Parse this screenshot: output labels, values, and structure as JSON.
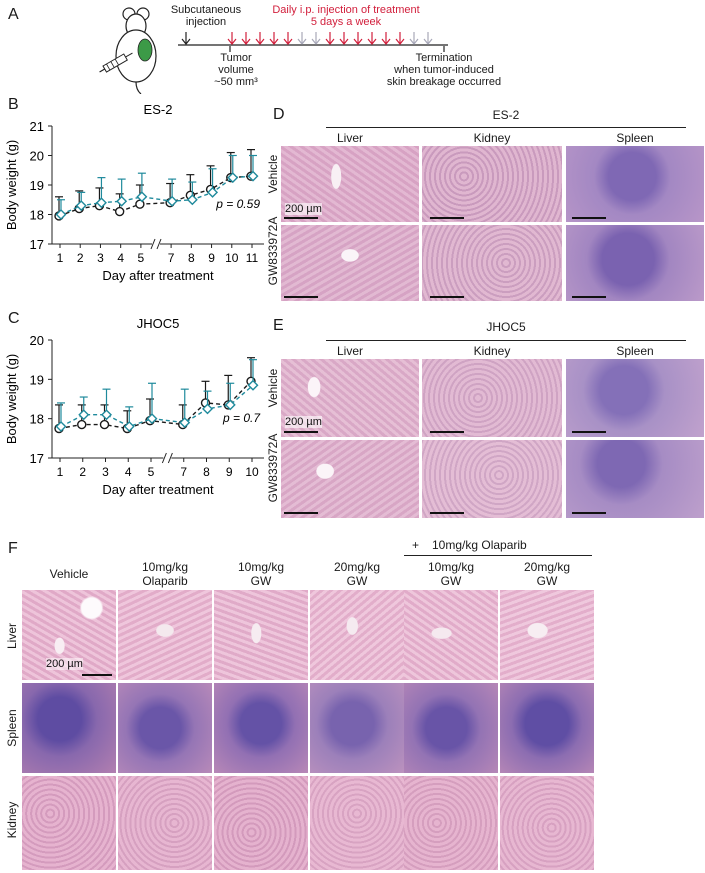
{
  "panels": {
    "A": "A",
    "B": "B",
    "C": "C",
    "D": "D",
    "E": "E",
    "F": "F"
  },
  "panelA": {
    "injection": "Subcutaneous\ninjection",
    "daily": "Daily i.p. injection of treatment",
    "daily2": "5 days a week",
    "tumor": "Tumor volume\n~50 mm³",
    "termination": "Termination\nwhen tumor-induced\nskin breakage occurred"
  },
  "chart_data": [
    {
      "type": "line",
      "title": "ES-2",
      "xlabel": "Day after treatment",
      "ylabel": "Body weight (g)",
      "categories": [
        "1",
        "2",
        "3",
        "4",
        "5",
        "7",
        "8",
        "9",
        "10",
        "11"
      ],
      "ylim": [
        17,
        21
      ],
      "yticks": [
        17,
        18,
        19,
        20,
        21
      ],
      "annotation": "p = 0.59",
      "series": [
        {
          "name": "Vehicle",
          "values": [
            17.95,
            18.2,
            18.3,
            18.1,
            18.35,
            18.4,
            18.65,
            18.85,
            19.25,
            19.3
          ],
          "err": [
            0.65,
            0.6,
            0.6,
            0.6,
            0.65,
            0.65,
            0.7,
            0.8,
            0.85,
            0.9
          ],
          "color": "#1a1a1a"
        },
        {
          "name": "GW833972A",
          "values": [
            18.0,
            18.3,
            18.4,
            18.45,
            18.6,
            18.45,
            18.5,
            18.75,
            19.25,
            19.3
          ],
          "err": [
            0.5,
            0.45,
            0.85,
            0.75,
            0.8,
            0.75,
            0.6,
            0.8,
            0.75,
            0.7
          ],
          "color": "#1f8a9c"
        }
      ],
      "legend": [
        "Vehicle",
        "GW833972A"
      ]
    },
    {
      "type": "line",
      "title": "JHOC5",
      "xlabel": "Day after treatment",
      "ylabel": "Body weight (g)",
      "categories": [
        "1",
        "2",
        "3",
        "4",
        "5",
        "7",
        "8",
        "9",
        "10"
      ],
      "ylim": [
        17,
        20
      ],
      "yticks": [
        17,
        18,
        19,
        20
      ],
      "annotation": "p = 0.7",
      "series": [
        {
          "name": "Vehicle",
          "values": [
            17.75,
            17.85,
            17.85,
            17.75,
            17.95,
            17.85,
            18.4,
            18.35,
            18.95
          ],
          "err": [
            0.6,
            0.5,
            0.5,
            0.45,
            0.55,
            0.5,
            0.55,
            0.75,
            0.6
          ],
          "color": "#1a1a1a"
        },
        {
          "name": "GW833972A",
          "values": [
            17.8,
            18.1,
            18.1,
            17.8,
            18.0,
            17.9,
            18.25,
            18.35,
            18.85
          ],
          "err": [
            0.6,
            0.45,
            0.65,
            0.5,
            0.9,
            0.85,
            0.45,
            0.55,
            0.65
          ],
          "color": "#1f8a9c"
        }
      ],
      "legend": [
        "Vehicle",
        "GW833972A"
      ]
    }
  ],
  "panelD": {
    "title": "ES-2",
    "cols": [
      "Liver",
      "Kidney",
      "Spleen"
    ],
    "rows": [
      "Vehicle",
      "GW833972A"
    ],
    "scale": "200 µm"
  },
  "panelE": {
    "title": "JHOC5",
    "cols": [
      "Liver",
      "Kidney",
      "Spleen"
    ],
    "rows": [
      "Vehicle",
      "GW833972A"
    ],
    "scale": "200 µm"
  },
  "panelF": {
    "plus": "+",
    "olaparib": "10mg/kg Olaparib",
    "cols": [
      "Vehicle",
      "10mg/kg\nOlaparib",
      "10mg/kg\nGW",
      "20mg/kg\nGW",
      "10mg/kg\nGW",
      "20mg/kg\nGW"
    ],
    "rows": [
      "Liver",
      "Spleen",
      "Kidney"
    ],
    "scale": "200 µm"
  },
  "colors": {
    "liver": "#d9a6c6",
    "kidney": "#dcb0cf",
    "spleen": "#9b7fc0",
    "red": "#d21f3c",
    "teal": "#1f8a9c"
  }
}
